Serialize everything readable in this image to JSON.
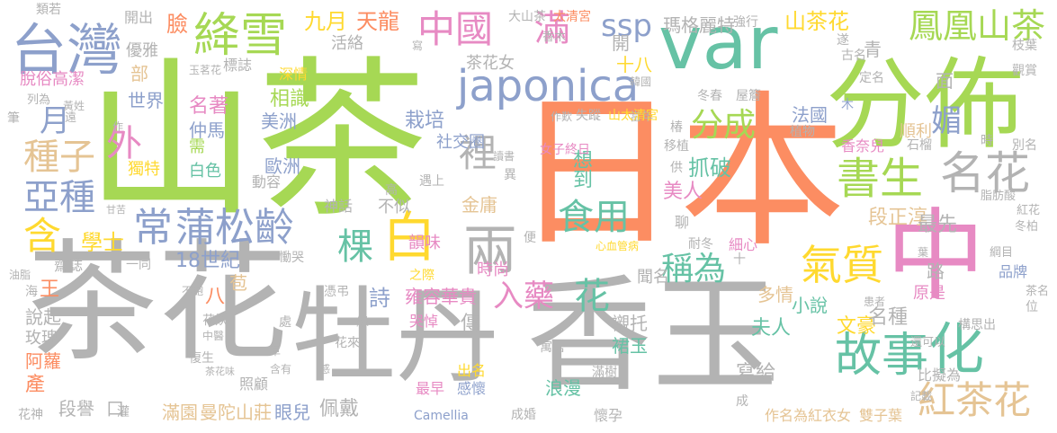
{
  "words": [
    {
      "text": "山茶",
      "color": "#a6d854"
    },
    {
      "text": "日本",
      "color": "#fc8d62"
    },
    {
      "text": "茶花",
      "color": "#b3b3b3"
    },
    {
      "text": "牡丹",
      "color": "#b3b3b3"
    },
    {
      "text": "香玉",
      "color": "#b3b3b3"
    },
    {
      "text": "var",
      "color": "#66c2a5"
    },
    {
      "text": "分佈",
      "color": "#a6d854"
    },
    {
      "text": "中",
      "color": "#e78ac3"
    },
    {
      "text": "台灣",
      "color": "#8da0cb"
    },
    {
      "text": "japonica",
      "color": "#8da0cb"
    },
    {
      "text": "絳雪",
      "color": "#a6d854"
    },
    {
      "text": "鳳凰山茶",
      "color": "#a6d854"
    },
    {
      "text": "中國",
      "color": "#e78ac3"
    },
    {
      "text": "常",
      "color": "#8da0cb"
    },
    {
      "text": "蒲松齡",
      "color": "#8da0cb"
    },
    {
      "text": "書生",
      "color": "#a6d854"
    },
    {
      "text": "名花",
      "color": "#b3b3b3"
    },
    {
      "text": "故事",
      "color": "#66c2a5"
    },
    {
      "text": "化",
      "color": "#66c2a5"
    },
    {
      "text": "紅茶花",
      "color": "#e5c494"
    },
    {
      "text": "氣質",
      "color": "#ffd92f"
    },
    {
      "text": "白",
      "color": "#ffd92f"
    },
    {
      "text": "兩",
      "color": "#b3b3b3"
    },
    {
      "text": "食用",
      "color": "#66c2a5"
    },
    {
      "text": "棵",
      "color": "#66c2a5"
    },
    {
      "text": "種子",
      "color": "#e5c494"
    },
    {
      "text": "亞種",
      "color": "#8da0cb"
    },
    {
      "text": "含",
      "color": "#ffd92f"
    },
    {
      "text": "滿",
      "color": "#e78ac3"
    },
    {
      "text": "ssp",
      "color": "#8da0cb"
    },
    {
      "text": "裡",
      "color": "#b3b3b3"
    },
    {
      "text": "分成",
      "color": "#a6d854"
    },
    {
      "text": "稱為",
      "color": "#66c2a5"
    },
    {
      "text": "入藥",
      "color": "#e78ac3"
    },
    {
      "text": "花",
      "color": "#66c2a5"
    },
    {
      "text": "外",
      "color": "#e78ac3"
    },
    {
      "text": "月",
      "color": "#8da0cb"
    },
    {
      "text": "媚",
      "color": "#8da0cb"
    },
    {
      "text": "九月",
      "color": "#ffd92f"
    },
    {
      "text": "天龍",
      "color": "#fc8d62"
    },
    {
      "text": "山茶花",
      "color": "#ffd92f"
    },
    {
      "text": "瑪格麗特",
      "color": "#b3b3b3"
    },
    {
      "text": "抓破",
      "color": "#66c2a5"
    },
    {
      "text": "美人",
      "color": "#e78ac3"
    },
    {
      "text": "段正淳",
      "color": "#e5c494"
    },
    {
      "text": "最先",
      "color": "#b3b3b3"
    },
    {
      "text": "臉",
      "color": "#fc8d62"
    },
    {
      "text": "相識",
      "color": "#a6d854"
    },
    {
      "text": "美洲",
      "color": "#8da0cb"
    },
    {
      "text": "歐洲",
      "color": "#8da0cb"
    },
    {
      "text": "學士",
      "color": "#ffd92f"
    },
    {
      "text": "18世紀",
      "color": "#8da0cb"
    },
    {
      "text": "金庸",
      "color": "#e5c494"
    },
    {
      "text": "小說",
      "color": "#66c2a5"
    },
    {
      "text": "文豪",
      "color": "#ffd92f"
    },
    {
      "text": "夫人",
      "color": "#66c2a5"
    },
    {
      "text": "名種",
      "color": "#b3b3b3"
    },
    {
      "text": "寫給",
      "color": "#b3b3b3"
    },
    {
      "text": "滿園",
      "color": "#e5c494"
    },
    {
      "text": "曼陀山莊",
      "color": "#e5c494"
    },
    {
      "text": "眼兒",
      "color": "#8da0cb"
    },
    {
      "text": "佩戴",
      "color": "#b3b3b3"
    },
    {
      "text": "段譽",
      "color": "#b3b3b3"
    },
    {
      "text": "口",
      "color": "#b3b3b3"
    },
    {
      "text": "說起",
      "color": "#b3b3b3"
    },
    {
      "text": "阿蘿",
      "color": "#fc8d62"
    },
    {
      "text": "產",
      "color": "#fc8d62"
    },
    {
      "text": "玫瑰",
      "color": "#b3b3b3"
    },
    {
      "text": "雍容華貴",
      "color": "#e78ac3"
    },
    {
      "text": "詩",
      "color": "#8da0cb"
    },
    {
      "text": "浪漫",
      "color": "#66c2a5"
    },
    {
      "text": "襯托",
      "color": "#b3b3b3"
    },
    {
      "text": "裙玉",
      "color": "#66c2a5"
    },
    {
      "text": "想到",
      "color": "#66c2a5"
    },
    {
      "text": "栽培",
      "color": "#8da0cb"
    },
    {
      "text": "社交圈",
      "color": "#8da0cb"
    },
    {
      "text": "十八",
      "color": "#ffd92f"
    },
    {
      "text": "茶花女",
      "color": "#b3b3b3"
    },
    {
      "text": "開",
      "color": "#b3b3b3"
    },
    {
      "text": "名著",
      "color": "#e78ac3"
    },
    {
      "text": "仲馬",
      "color": "#8da0cb"
    },
    {
      "text": "世界",
      "color": "#8da0cb"
    },
    {
      "text": "部",
      "color": "#e5c494"
    },
    {
      "text": "優雅",
      "color": "#b3b3b3"
    },
    {
      "text": "脫俗高潔",
      "color": "#e78ac3"
    },
    {
      "text": "法國",
      "color": "#8da0cb"
    },
    {
      "text": "順利",
      "color": "#e5c494"
    },
    {
      "text": "青",
      "color": "#b3b3b3"
    },
    {
      "text": "面",
      "color": "#b3b3b3"
    },
    {
      "text": "傳",
      "color": "#b3b3b3"
    },
    {
      "text": "聞名",
      "color": "#b3b3b3"
    },
    {
      "text": "多情",
      "color": "#e5c494"
    },
    {
      "text": "時尚",
      "color": "#e78ac3"
    },
    {
      "text": "韻味",
      "color": "#e78ac3"
    },
    {
      "text": "不似",
      "color": "#b3b3b3"
    },
    {
      "text": "八",
      "color": "#fc8d62"
    },
    {
      "text": "苞",
      "color": "#e5c494"
    },
    {
      "text": "王",
      "color": "#fc8d62"
    },
    {
      "text": "齋誌",
      "color": "#b3b3b3"
    },
    {
      "text": "路",
      "color": "#b3b3b3"
    },
    {
      "text": "品牌",
      "color": "#8da0cb"
    },
    {
      "text": "原是",
      "color": "#e78ac3"
    },
    {
      "text": "比擬為",
      "color": "#b3b3b3"
    },
    {
      "text": "雙子葉",
      "color": "#e5c494"
    },
    {
      "text": "作名為紅衣女",
      "color": "#e5c494"
    },
    {
      "text": "Camellia",
      "color": "#8da0cb"
    },
    {
      "text": "成婚",
      "color": "#b3b3b3"
    },
    {
      "text": "懷孕",
      "color": "#b3b3b3"
    },
    {
      "text": "出名",
      "color": "#ffd92f"
    },
    {
      "text": "感懷",
      "color": "#8da0cb"
    },
    {
      "text": "最早",
      "color": "#e78ac3"
    },
    {
      "text": "照顧",
      "color": "#b3b3b3"
    },
    {
      "text": "花神",
      "color": "#b3b3b3"
    },
    {
      "text": "標誌",
      "color": "#b3b3b3"
    },
    {
      "text": "深情",
      "color": "#ffd92f"
    },
    {
      "text": "活絡",
      "color": "#b3b3b3"
    },
    {
      "text": "需",
      "color": "#a6d854"
    },
    {
      "text": "白色",
      "color": "#66c2a5"
    },
    {
      "text": "獨特",
      "color": "#ffd92f"
    },
    {
      "text": "動容",
      "color": "#b3b3b3"
    },
    {
      "text": "神話",
      "color": "#b3b3b3"
    },
    {
      "text": "類若",
      "color": "#b3b3b3"
    },
    {
      "text": "開出",
      "color": "#b3b3b3"
    },
    {
      "text": "大山茶",
      "color": "#b3b3b3"
    },
    {
      "text": "太清宮",
      "color": "#fc8d62"
    },
    {
      "text": "強行",
      "color": "#b3b3b3"
    },
    {
      "text": "遂",
      "color": "#b3b3b3"
    },
    {
      "text": "枝葉",
      "color": "#b3b3b3"
    },
    {
      "text": "觀賞",
      "color": "#b3b3b3"
    },
    {
      "text": "古名",
      "color": "#b3b3b3"
    },
    {
      "text": "定名",
      "color": "#b3b3b3"
    },
    {
      "text": "冬春",
      "color": "#b3b3b3"
    },
    {
      "text": "屋簷",
      "color": "#b3b3b3"
    },
    {
      "text": "植物",
      "color": "#b3b3b3"
    },
    {
      "text": "木",
      "color": "#8da0cb"
    },
    {
      "text": "時",
      "color": "#b3b3b3"
    },
    {
      "text": "別名",
      "color": "#b3b3b3"
    },
    {
      "text": "石榴",
      "color": "#b3b3b3"
    },
    {
      "text": "香奈兒",
      "color": "#e78ac3"
    },
    {
      "text": "椿",
      "color": "#b3b3b3"
    },
    {
      "text": "移植",
      "color": "#b3b3b3"
    },
    {
      "text": "供",
      "color": "#b3b3b3"
    },
    {
      "text": "脂肪酸",
      "color": "#b3b3b3"
    },
    {
      "text": "紅花",
      "color": "#b3b3b3"
    },
    {
      "text": "冬柏",
      "color": "#b3b3b3"
    },
    {
      "text": "綱目",
      "color": "#b3b3b3"
    },
    {
      "text": "耐冬",
      "color": "#b3b3b3"
    },
    {
      "text": "細心",
      "color": "#e78ac3"
    },
    {
      "text": "聊",
      "color": "#b3b3b3"
    },
    {
      "text": "心血管病",
      "color": "#ffd92f"
    },
    {
      "text": "茶名",
      "color": "#b3b3b3"
    },
    {
      "text": "位",
      "color": "#b3b3b3"
    },
    {
      "text": "構思出",
      "color": "#b3b3b3"
    },
    {
      "text": "還可以",
      "color": "#b3b3b3"
    },
    {
      "text": "患者",
      "color": "#b3b3b3"
    },
    {
      "text": "記載",
      "color": "#b3b3b3"
    },
    {
      "text": "滿樹",
      "color": "#b3b3b3"
    },
    {
      "text": "寓居",
      "color": "#b3b3b3"
    },
    {
      "text": "哭悼",
      "color": "#e78ac3"
    },
    {
      "text": "之際",
      "color": "#ffd92f"
    },
    {
      "text": "便",
      "color": "#b3b3b3"
    },
    {
      "text": "遇上",
      "color": "#b3b3b3"
    },
    {
      "text": "異",
      "color": "#b3b3b3"
    },
    {
      "text": "讀書",
      "color": "#b3b3b3"
    },
    {
      "text": "女子終日",
      "color": "#e78ac3"
    },
    {
      "text": "當年",
      "color": "#b3b3b3"
    },
    {
      "text": "作歎",
      "color": "#b3b3b3"
    },
    {
      "text": "失蹤",
      "color": "#b3b3b3"
    },
    {
      "text": "山太清宮",
      "color": "#ffd92f"
    },
    {
      "text": "韓國",
      "color": "#b3b3b3"
    },
    {
      "text": "香木",
      "color": "#b3b3b3"
    },
    {
      "text": "寫",
      "color": "#b3b3b3"
    },
    {
      "text": "玉茗花",
      "color": "#b3b3b3"
    },
    {
      "text": "黃姓",
      "color": "#b3b3b3"
    },
    {
      "text": "列為",
      "color": "#b3b3b3"
    },
    {
      "text": "筆",
      "color": "#b3b3b3"
    },
    {
      "text": "遠",
      "color": "#b3b3b3"
    },
    {
      "text": "作",
      "color": "#b3b3b3"
    },
    {
      "text": "甘苦",
      "color": "#b3b3b3"
    },
    {
      "text": "高",
      "color": "#b3b3b3"
    },
    {
      "text": "慟哭",
      "color": "#b3b3b3"
    },
    {
      "text": "一同",
      "color": "#b3b3b3"
    },
    {
      "text": "憑弔",
      "color": "#b3b3b3"
    },
    {
      "text": "不飽",
      "color": "#b3b3b3"
    },
    {
      "text": "花妖",
      "color": "#b3b3b3"
    },
    {
      "text": "中醫",
      "color": "#b3b3b3"
    },
    {
      "text": "處",
      "color": "#b3b3b3"
    },
    {
      "text": "綠",
      "color": "#b3b3b3"
    },
    {
      "text": "花來",
      "color": "#b3b3b3"
    },
    {
      "text": "復生",
      "color": "#b3b3b3"
    },
    {
      "text": "茶花味",
      "color": "#b3b3b3"
    },
    {
      "text": "草",
      "color": "#b3b3b3"
    },
    {
      "text": "含有",
      "color": "#b3b3b3"
    },
    {
      "text": "感",
      "color": "#b3b3b3"
    },
    {
      "text": "灌",
      "color": "#b3b3b3"
    },
    {
      "text": "油脂",
      "color": "#b3b3b3"
    },
    {
      "text": "海",
      "color": "#b3b3b3"
    },
    {
      "text": "成",
      "color": "#b3b3b3"
    },
    {
      "text": "葉",
      "color": "#b3b3b3"
    },
    {
      "text": "十",
      "color": "#b3b3b3"
    }
  ]
}
